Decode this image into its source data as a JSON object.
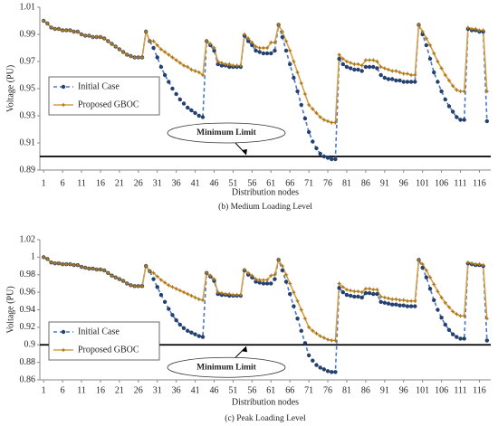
{
  "chart_data": [
    {
      "type": "line",
      "caption": "(b) Medium Loading Level",
      "ylabel": "Voltage (PU)",
      "xlabel": "Distribution nodes",
      "x": [
        1,
        2,
        3,
        4,
        5,
        6,
        7,
        8,
        9,
        10,
        11,
        12,
        13,
        14,
        15,
        16,
        17,
        18,
        19,
        20,
        21,
        22,
        23,
        24,
        25,
        26,
        27,
        28,
        29,
        30,
        31,
        32,
        33,
        34,
        35,
        36,
        37,
        38,
        39,
        40,
        41,
        42,
        43,
        44,
        45,
        46,
        47,
        48,
        49,
        50,
        51,
        52,
        53,
        54,
        55,
        56,
        57,
        58,
        59,
        60,
        61,
        62,
        63,
        64,
        65,
        66,
        67,
        68,
        69,
        70,
        71,
        72,
        73,
        74,
        75,
        76,
        77,
        78,
        79,
        80,
        81,
        82,
        83,
        84,
        85,
        86,
        87,
        88,
        89,
        90,
        91,
        92,
        93,
        94,
        95,
        96,
        97,
        98,
        99,
        100,
        101,
        102,
        103,
        104,
        105,
        106,
        107,
        108,
        109,
        110,
        111,
        112,
        113,
        114,
        115,
        116,
        117,
        118
      ],
      "xlim": [
        0,
        119
      ],
      "xticks": [
        1,
        6,
        11,
        16,
        21,
        26,
        31,
        36,
        41,
        46,
        51,
        56,
        61,
        66,
        71,
        76,
        81,
        86,
        91,
        96,
        101,
        106,
        111,
        116
      ],
      "ylim": [
        0.89,
        1.01
      ],
      "yticks": [
        0.89,
        0.91,
        0.93,
        0.95,
        0.97,
        0.99,
        1.01
      ],
      "legend": "center left",
      "limit": 0.9,
      "limit_label": "Minimum Limit",
      "series": [
        {
          "name": "Initial Case",
          "color": "#4a78c8",
          "marker_color": "#23406e",
          "dash": true,
          "marker": "circle",
          "values": [
            1.0,
            0.998,
            0.995,
            0.994,
            0.994,
            0.993,
            0.993,
            0.993,
            0.992,
            0.992,
            0.99,
            0.989,
            0.989,
            0.988,
            0.988,
            0.988,
            0.987,
            0.985,
            0.983,
            0.981,
            0.979,
            0.977,
            0.975,
            0.974,
            0.973,
            0.973,
            0.973,
            0.992,
            0.985,
            0.98,
            0.973,
            0.966,
            0.96,
            0.955,
            0.95,
            0.946,
            0.942,
            0.939,
            0.936,
            0.934,
            0.932,
            0.93,
            0.929,
            0.985,
            0.982,
            0.978,
            0.968,
            0.967,
            0.967,
            0.966,
            0.966,
            0.966,
            0.966,
            0.989,
            0.985,
            0.982,
            0.978,
            0.977,
            0.976,
            0.976,
            0.976,
            0.978,
            0.997,
            0.988,
            0.978,
            0.968,
            0.958,
            0.948,
            0.938,
            0.928,
            0.918,
            0.911,
            0.906,
            0.902,
            0.9,
            0.899,
            0.898,
            0.898,
            0.972,
            0.968,
            0.966,
            0.965,
            0.964,
            0.964,
            0.963,
            0.966,
            0.966,
            0.966,
            0.965,
            0.96,
            0.958,
            0.957,
            0.957,
            0.956,
            0.956,
            0.955,
            0.955,
            0.955,
            0.955,
            0.997,
            0.99,
            0.982,
            0.972,
            0.962,
            0.955,
            0.948,
            0.942,
            0.937,
            0.933,
            0.929,
            0.927,
            0.927,
            0.994,
            0.993,
            0.993,
            0.992,
            0.992,
            0.926
          ]
        },
        {
          "name": "Proposed GBOC",
          "color": "#d4a04a",
          "marker_color": "#b07a1c",
          "dash": false,
          "marker": "star",
          "values": [
            1.0,
            0.998,
            0.995,
            0.994,
            0.994,
            0.993,
            0.993,
            0.993,
            0.992,
            0.992,
            0.99,
            0.989,
            0.989,
            0.988,
            0.988,
            0.988,
            0.987,
            0.985,
            0.983,
            0.981,
            0.979,
            0.977,
            0.975,
            0.974,
            0.973,
            0.973,
            0.973,
            0.992,
            0.985,
            0.985,
            0.982,
            0.979,
            0.977,
            0.975,
            0.973,
            0.971,
            0.969,
            0.967,
            0.966,
            0.964,
            0.963,
            0.962,
            0.96,
            0.985,
            0.983,
            0.98,
            0.97,
            0.969,
            0.968,
            0.968,
            0.967,
            0.967,
            0.967,
            0.99,
            0.987,
            0.984,
            0.981,
            0.98,
            0.98,
            0.98,
            0.984,
            0.984,
            0.997,
            0.992,
            0.985,
            0.978,
            0.97,
            0.962,
            0.954,
            0.946,
            0.938,
            0.935,
            0.932,
            0.929,
            0.927,
            0.926,
            0.925,
            0.925,
            0.975,
            0.972,
            0.97,
            0.969,
            0.968,
            0.968,
            0.967,
            0.971,
            0.971,
            0.971,
            0.97,
            0.966,
            0.965,
            0.964,
            0.963,
            0.963,
            0.962,
            0.961,
            0.961,
            0.96,
            0.96,
            0.997,
            0.992,
            0.987,
            0.982,
            0.976,
            0.97,
            0.965,
            0.96,
            0.956,
            0.952,
            0.949,
            0.948,
            0.948,
            0.995,
            0.994,
            0.994,
            0.993,
            0.993,
            0.948
          ]
        }
      ]
    },
    {
      "type": "line",
      "caption": "(c) Peak Loading Level",
      "ylabel": "Voltage (PU)",
      "xlabel": "Distribution nodes",
      "x": [
        1,
        2,
        3,
        4,
        5,
        6,
        7,
        8,
        9,
        10,
        11,
        12,
        13,
        14,
        15,
        16,
        17,
        18,
        19,
        20,
        21,
        22,
        23,
        24,
        25,
        26,
        27,
        28,
        29,
        30,
        31,
        32,
        33,
        34,
        35,
        36,
        37,
        38,
        39,
        40,
        41,
        42,
        43,
        44,
        45,
        46,
        47,
        48,
        49,
        50,
        51,
        52,
        53,
        54,
        55,
        56,
        57,
        58,
        59,
        60,
        61,
        62,
        63,
        64,
        65,
        66,
        67,
        68,
        69,
        70,
        71,
        72,
        73,
        74,
        75,
        76,
        77,
        78,
        79,
        80,
        81,
        82,
        83,
        84,
        85,
        86,
        87,
        88,
        89,
        90,
        91,
        92,
        93,
        94,
        95,
        96,
        97,
        98,
        99,
        100,
        101,
        102,
        103,
        104,
        105,
        106,
        107,
        108,
        109,
        110,
        111,
        112,
        113,
        114,
        115,
        116,
        117,
        118
      ],
      "xlim": [
        0,
        119
      ],
      "xticks": [
        1,
        6,
        11,
        16,
        21,
        26,
        31,
        36,
        41,
        46,
        51,
        56,
        61,
        66,
        71,
        76,
        81,
        86,
        91,
        96,
        101,
        106,
        111,
        116
      ],
      "ylim": [
        0.86,
        1.02
      ],
      "yticks": [
        0.86,
        0.88,
        0.9,
        0.92,
        0.94,
        0.96,
        0.98,
        1,
        1.02
      ],
      "legend": "lower left",
      "limit": 0.9,
      "limit_label": "Minimum Limit",
      "series": [
        {
          "name": "Initial Case",
          "color": "#4a78c8",
          "marker_color": "#23406e",
          "dash": true,
          "marker": "circle",
          "values": [
            1.0,
            0.998,
            0.994,
            0.993,
            0.993,
            0.992,
            0.992,
            0.992,
            0.991,
            0.991,
            0.989,
            0.988,
            0.987,
            0.987,
            0.986,
            0.986,
            0.985,
            0.982,
            0.979,
            0.977,
            0.975,
            0.973,
            0.97,
            0.968,
            0.967,
            0.967,
            0.967,
            0.99,
            0.984,
            0.975,
            0.966,
            0.957,
            0.949,
            0.941,
            0.934,
            0.928,
            0.923,
            0.919,
            0.916,
            0.914,
            0.912,
            0.91,
            0.909,
            0.982,
            0.978,
            0.973,
            0.958,
            0.957,
            0.957,
            0.956,
            0.956,
            0.956,
            0.956,
            0.985,
            0.98,
            0.977,
            0.972,
            0.971,
            0.97,
            0.97,
            0.97,
            0.975,
            0.997,
            0.985,
            0.972,
            0.958,
            0.944,
            0.93,
            0.916,
            0.902,
            0.888,
            0.882,
            0.877,
            0.874,
            0.872,
            0.87,
            0.869,
            0.869,
            0.965,
            0.96,
            0.957,
            0.956,
            0.955,
            0.955,
            0.954,
            0.959,
            0.959,
            0.958,
            0.958,
            0.949,
            0.948,
            0.947,
            0.946,
            0.946,
            0.945,
            0.945,
            0.944,
            0.944,
            0.944,
            0.997,
            0.988,
            0.977,
            0.964,
            0.951,
            0.94,
            0.931,
            0.923,
            0.917,
            0.912,
            0.909,
            0.907,
            0.907,
            0.993,
            0.992,
            0.991,
            0.991,
            0.99,
            0.905
          ]
        },
        {
          "name": "Proposed GBOC",
          "color": "#d4a04a",
          "marker_color": "#b07a1c",
          "dash": false,
          "marker": "star",
          "values": [
            1.0,
            0.998,
            0.994,
            0.993,
            0.993,
            0.992,
            0.992,
            0.992,
            0.991,
            0.991,
            0.989,
            0.988,
            0.987,
            0.987,
            0.986,
            0.986,
            0.985,
            0.982,
            0.979,
            0.977,
            0.975,
            0.973,
            0.97,
            0.968,
            0.967,
            0.967,
            0.967,
            0.99,
            0.984,
            0.982,
            0.978,
            0.974,
            0.971,
            0.968,
            0.966,
            0.964,
            0.962,
            0.96,
            0.958,
            0.956,
            0.954,
            0.952,
            0.951,
            0.982,
            0.979,
            0.975,
            0.96,
            0.959,
            0.958,
            0.958,
            0.957,
            0.957,
            0.957,
            0.986,
            0.982,
            0.979,
            0.975,
            0.974,
            0.974,
            0.974,
            0.979,
            0.98,
            0.997,
            0.99,
            0.98,
            0.97,
            0.96,
            0.95,
            0.94,
            0.93,
            0.92,
            0.916,
            0.913,
            0.91,
            0.908,
            0.906,
            0.905,
            0.905,
            0.97,
            0.966,
            0.963,
            0.962,
            0.961,
            0.961,
            0.96,
            0.964,
            0.964,
            0.963,
            0.963,
            0.955,
            0.954,
            0.953,
            0.952,
            0.952,
            0.951,
            0.951,
            0.95,
            0.95,
            0.95,
            0.997,
            0.992,
            0.985,
            0.977,
            0.969,
            0.961,
            0.954,
            0.948,
            0.943,
            0.938,
            0.935,
            0.933,
            0.933,
            0.994,
            0.993,
            0.992,
            0.992,
            0.991,
            0.93
          ]
        }
      ]
    }
  ]
}
